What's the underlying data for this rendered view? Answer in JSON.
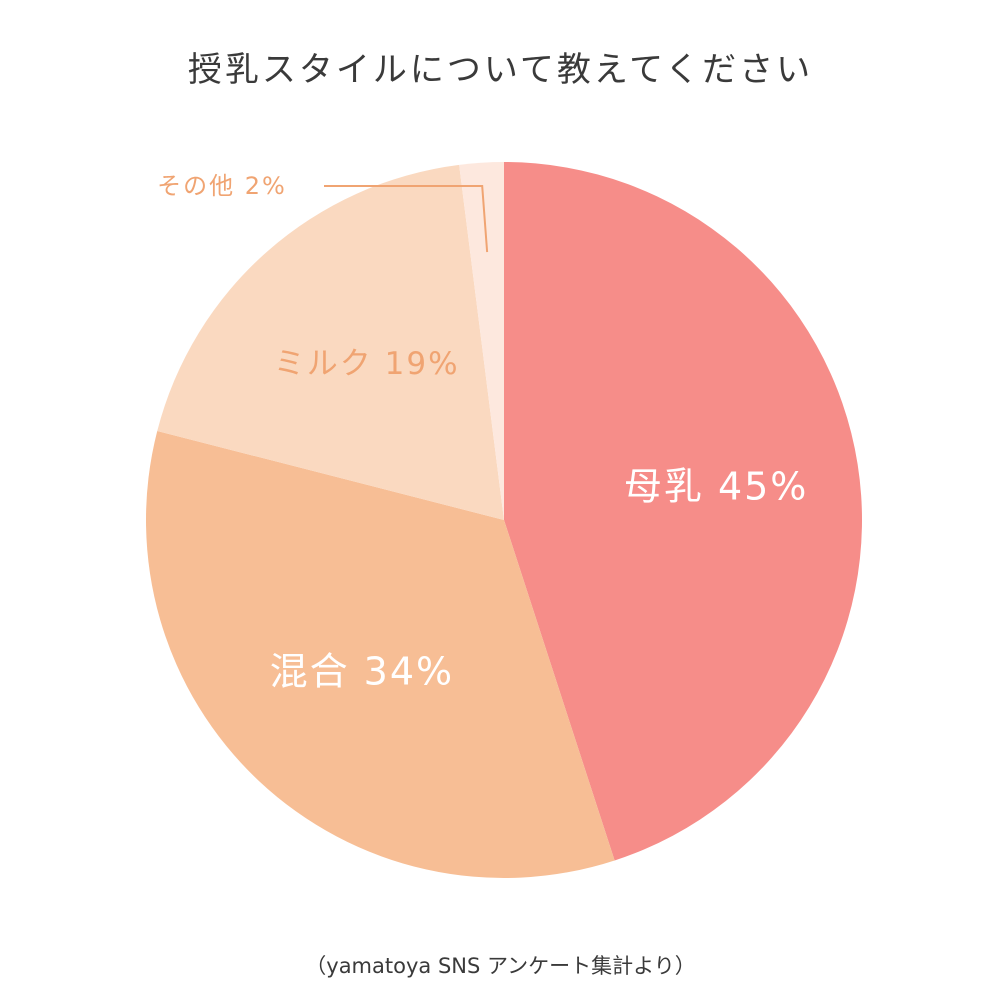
{
  "chart_data": {
    "type": "pie",
    "title": "授乳スタイルについて教えてください",
    "slices": [
      {
        "name": "母乳",
        "value": 45,
        "label": "母乳 45%",
        "color": "#f68d89",
        "label_color": "#ffffff"
      },
      {
        "name": "混合",
        "value": 34,
        "label": "混合 34%",
        "color": "#f7be95",
        "label_color": "#ffffff"
      },
      {
        "name": "ミルク",
        "value": 19,
        "label": "ミルク 19%",
        "color": "#fad9c0",
        "label_color": "#f0a472"
      },
      {
        "name": "その他",
        "value": 2,
        "label": "その他 2%",
        "color": "#fde8de",
        "label_color": "#f0a472"
      }
    ],
    "source": "（yamatoya SNS アンケート集計より）"
  }
}
